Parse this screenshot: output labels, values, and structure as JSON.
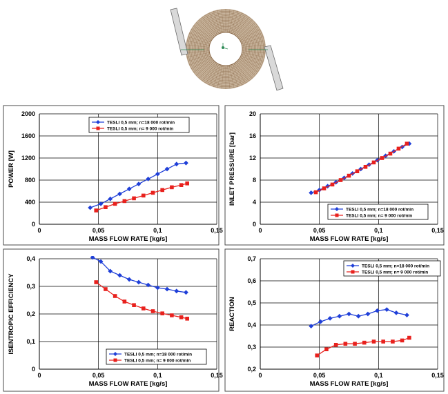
{
  "figure": {
    "illustration": {
      "description_icon": "rotor-disc-icon",
      "ring_color": "#8b6a4a",
      "blade_color": "#6b6b6b"
    },
    "series_colors": {
      "n18000": "#1f3fd8",
      "n9000": "#e8211d"
    }
  },
  "chart_data": [
    {
      "type": "line",
      "xlabel": "MASS FLOW RATE [kg/s]",
      "ylabel": "POWER [W]",
      "xlim": [
        0,
        0.15
      ],
      "ylim": [
        0,
        2000
      ],
      "xticks": [
        "0",
        "0,05",
        "0,1",
        "0,15"
      ],
      "yticks": [
        "0",
        "400",
        "800",
        "1200",
        "1600",
        "2000"
      ],
      "legend_position": "top-center",
      "grid": true,
      "series": [
        {
          "name": "TESLI 0,5 mm; n=18 000 rot/min",
          "marker": "diamond",
          "color": "#1f3fd8",
          "x": [
            0.043,
            0.052,
            0.06,
            0.068,
            0.076,
            0.084,
            0.092,
            0.1,
            0.108,
            0.116,
            0.124
          ],
          "y": [
            300,
            370,
            460,
            550,
            640,
            730,
            820,
            910,
            1000,
            1090,
            1110
          ]
        },
        {
          "name": "TESLI 0,5 mm; n= 9 000 rot/min",
          "marker": "square",
          "color": "#e8211d",
          "x": [
            0.048,
            0.056,
            0.064,
            0.072,
            0.08,
            0.088,
            0.096,
            0.104,
            0.112,
            0.12,
            0.125
          ],
          "y": [
            250,
            310,
            370,
            420,
            470,
            520,
            570,
            620,
            670,
            710,
            740
          ]
        }
      ]
    },
    {
      "type": "line",
      "xlabel": "MASS FLOW RATE [kg/s]",
      "ylabel": "INLET PRESSURE [bar]",
      "xlim": [
        0,
        0.15
      ],
      "ylim": [
        0,
        20
      ],
      "xticks": [
        "0",
        "0,05",
        "0,1",
        "0,15"
      ],
      "yticks": [
        "0",
        "4",
        "8",
        "12",
        "16",
        "20"
      ],
      "legend_position": "bottom-center",
      "grid": true,
      "series": [
        {
          "name": "TESLI 0,5 mm; n=18 000 rot/min",
          "marker": "diamond",
          "color": "#1f3fd8",
          "x": [
            0.043,
            0.05,
            0.057,
            0.064,
            0.071,
            0.078,
            0.085,
            0.092,
            0.099,
            0.106,
            0.113,
            0.12,
            0.126
          ],
          "y": [
            5.7,
            6.2,
            6.9,
            7.6,
            8.4,
            9.2,
            10.0,
            10.8,
            11.6,
            12.4,
            13.2,
            14.0,
            14.6
          ]
        },
        {
          "name": "TESLI 0,5 mm; n= 9 000 rot/min",
          "marker": "square",
          "color": "#e8211d",
          "x": [
            0.047,
            0.054,
            0.061,
            0.068,
            0.075,
            0.082,
            0.089,
            0.096,
            0.103,
            0.11,
            0.117,
            0.124
          ],
          "y": [
            5.8,
            6.5,
            7.2,
            8.0,
            8.8,
            9.6,
            10.4,
            11.2,
            12.0,
            12.8,
            13.7,
            14.6
          ]
        }
      ]
    },
    {
      "type": "line",
      "xlabel": "MASS FLOW RATE [kg/s]",
      "ylabel": "ISENTROPIC EFFICIENCY",
      "xlim": [
        0,
        0.15
      ],
      "ylim": [
        0,
        0.4
      ],
      "xticks": [
        "0",
        "0,05",
        "0,1",
        "0,15"
      ],
      "yticks": [
        "0",
        "0,1",
        "0,2",
        "0,3",
        "0,4"
      ],
      "legend_position": "bottom-center",
      "grid": true,
      "series": [
        {
          "name": "TESLI 0,5 mm; n=18 000 rot/min",
          "marker": "diamond",
          "color": "#1f3fd8",
          "x": [
            0.045,
            0.052,
            0.06,
            0.068,
            0.076,
            0.084,
            0.092,
            0.1,
            0.108,
            0.116,
            0.124
          ],
          "y": [
            0.405,
            0.39,
            0.355,
            0.34,
            0.325,
            0.315,
            0.305,
            0.295,
            0.29,
            0.283,
            0.278
          ]
        },
        {
          "name": "TESLI 0,5 mm; n= 9 000 rot/min",
          "marker": "square",
          "color": "#e8211d",
          "x": [
            0.048,
            0.056,
            0.064,
            0.072,
            0.08,
            0.088,
            0.096,
            0.104,
            0.112,
            0.12,
            0.125
          ],
          "y": [
            0.315,
            0.29,
            0.265,
            0.245,
            0.232,
            0.22,
            0.21,
            0.202,
            0.195,
            0.188,
            0.183
          ]
        }
      ]
    },
    {
      "type": "line",
      "xlabel": "MASS FLOW RATE [kg/s]",
      "ylabel": "REACTION",
      "xlim": [
        0,
        0.15
      ],
      "ylim": [
        0.2,
        0.7
      ],
      "xticks": [
        "0",
        "0,05",
        "0,1",
        "0,15"
      ],
      "yticks": [
        "0,2",
        "0,3",
        "0,4",
        "0,5",
        "0,6",
        "0,7"
      ],
      "legend_position": "top-center",
      "grid": true,
      "series": [
        {
          "name": "TESLI 0,5 mm; n=18 000 rot/min",
          "marker": "diamond",
          "color": "#1f3fd8",
          "x": [
            0.043,
            0.051,
            0.059,
            0.067,
            0.075,
            0.083,
            0.091,
            0.099,
            0.107,
            0.115,
            0.124
          ],
          "y": [
            0.395,
            0.415,
            0.43,
            0.44,
            0.45,
            0.44,
            0.45,
            0.465,
            0.47,
            0.455,
            0.445
          ]
        },
        {
          "name": "TESLI 0,5 mm; n= 9 000 rot/min",
          "marker": "square",
          "color": "#e8211d",
          "x": [
            0.048,
            0.056,
            0.064,
            0.072,
            0.08,
            0.088,
            0.096,
            0.104,
            0.112,
            0.12,
            0.126
          ],
          "y": [
            0.262,
            0.29,
            0.31,
            0.315,
            0.315,
            0.32,
            0.325,
            0.325,
            0.325,
            0.33,
            0.342
          ]
        }
      ]
    }
  ]
}
